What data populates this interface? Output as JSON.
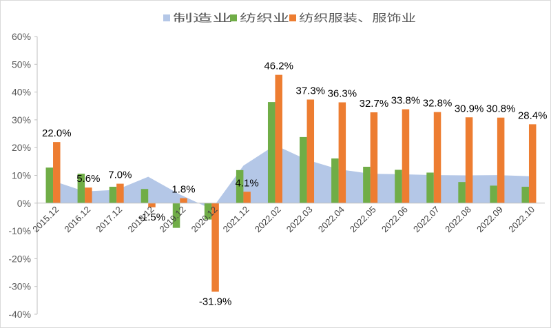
{
  "chart_data": {
    "type": "bar",
    "categories": [
      "2015.12",
      "2016.12",
      "2017.12",
      "2018.12",
      "2019.12",
      "2020.12",
      "2021.12",
      "2022.02",
      "2022.03",
      "2022.04",
      "2022.05",
      "2022.06",
      "2022.07",
      "2022.08",
      "2022.09",
      "2022.10"
    ],
    "series": [
      {
        "name": "制造业",
        "type": "area",
        "color": "#b4c7e7",
        "values": [
          8.0,
          4.2,
          4.8,
          9.5,
          3.1,
          -2.2,
          13.5,
          20.9,
          15.6,
          12.2,
          10.6,
          10.4,
          10.1,
          10.0,
          10.1,
          9.7
        ]
      },
      {
        "name": "纺织业",
        "type": "bar",
        "color": "#70ad47",
        "values": [
          12.8,
          10.6,
          5.9,
          5.1,
          -8.9,
          -5.9,
          11.9,
          36.4,
          23.8,
          16.1,
          13.1,
          12.0,
          11.0,
          7.6,
          6.3,
          5.9
        ]
      },
      {
        "name": "纺织服装、服饰业",
        "type": "bar",
        "color": "#ed7d31",
        "values": [
          22.0,
          5.6,
          7.0,
          -1.5,
          1.8,
          -31.9,
          4.1,
          46.2,
          37.3,
          36.3,
          32.7,
          33.8,
          32.8,
          30.9,
          30.8,
          28.4
        ]
      }
    ],
    "data_labels": [
      "22.0%",
      "5.6%",
      "7.0%",
      "-1.5%",
      "1.8%",
      "-31.9%",
      "4.1%",
      "46.2%",
      "37.3%",
      "36.3%",
      "32.7%",
      "33.8%",
      "32.8%",
      "30.9%",
      "30.8%",
      "28.4%"
    ],
    "yticks": [
      60,
      50,
      40,
      30,
      20,
      10,
      0,
      -10,
      -20,
      -30,
      -40
    ],
    "ytick_labels": [
      "60%",
      "50%",
      "40%",
      "30%",
      "20%",
      "10%",
      "0%",
      "-10%",
      "-20%",
      "-30%",
      "-40%"
    ],
    "ylim": [
      -40,
      60
    ],
    "title": "",
    "xlabel": "",
    "ylabel": "",
    "grid": false,
    "legend_position": "top-center"
  }
}
